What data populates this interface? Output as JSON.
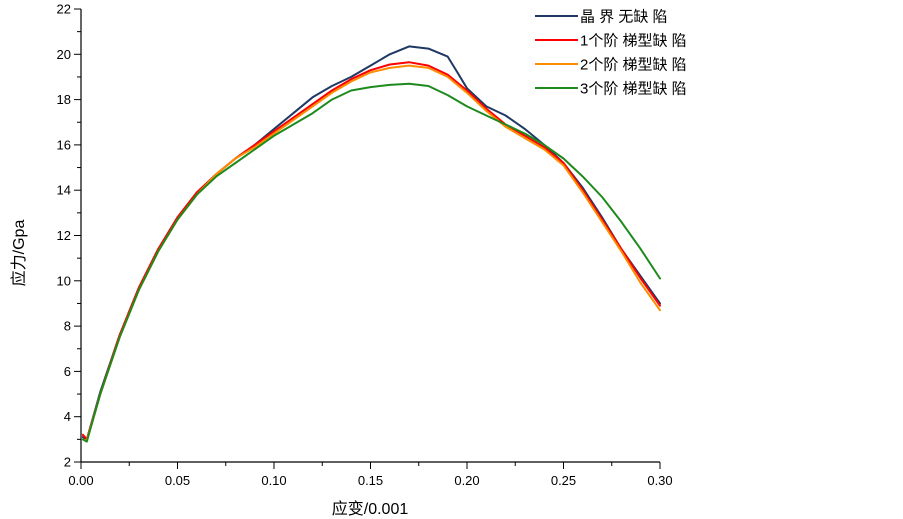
{
  "chart_data": {
    "type": "line",
    "xlabel": "应变/0.001",
    "ylabel": "应力/Gpa",
    "xlim": [
      0.0,
      0.3
    ],
    "ylim": [
      2,
      22
    ],
    "x_ticks": [
      "0.00",
      "0.05",
      "0.10",
      "0.15",
      "0.20",
      "0.25",
      "0.30"
    ],
    "y_ticks": [
      "2",
      "4",
      "6",
      "8",
      "10",
      "12",
      "14",
      "16",
      "18",
      "20",
      "22"
    ],
    "legend_position": "top-right",
    "grid": false,
    "series": [
      {
        "name": "晶 界 无缺 陷",
        "color": "#1f3864",
        "x": [
          0.001,
          0.003,
          0.01,
          0.02,
          0.03,
          0.04,
          0.05,
          0.06,
          0.07,
          0.08,
          0.09,
          0.1,
          0.11,
          0.12,
          0.13,
          0.14,
          0.15,
          0.16,
          0.17,
          0.18,
          0.19,
          0.195,
          0.2,
          0.21,
          0.22,
          0.23,
          0.24,
          0.25,
          0.26,
          0.27,
          0.28,
          0.29,
          0.3
        ],
        "y": [
          3.1,
          3.0,
          5.1,
          7.6,
          9.7,
          11.4,
          12.8,
          13.9,
          14.7,
          15.4,
          16.0,
          16.7,
          17.4,
          18.1,
          18.6,
          19.0,
          19.5,
          20.0,
          20.35,
          20.25,
          19.9,
          19.2,
          18.5,
          17.7,
          17.3,
          16.7,
          16.0,
          15.2,
          14.1,
          12.8,
          11.4,
          10.2,
          9.0
        ]
      },
      {
        "name": "1个阶 梯型缺 陷",
        "color": "#ff0000",
        "x": [
          0.001,
          0.003,
          0.01,
          0.02,
          0.03,
          0.04,
          0.05,
          0.06,
          0.07,
          0.08,
          0.09,
          0.1,
          0.11,
          0.12,
          0.13,
          0.14,
          0.15,
          0.16,
          0.17,
          0.18,
          0.19,
          0.2,
          0.21,
          0.22,
          0.23,
          0.24,
          0.25,
          0.26,
          0.27,
          0.28,
          0.29,
          0.3
        ],
        "y": [
          3.2,
          3.0,
          5.0,
          7.6,
          9.7,
          11.4,
          12.8,
          13.9,
          14.7,
          15.4,
          16.0,
          16.6,
          17.2,
          17.8,
          18.4,
          18.9,
          19.3,
          19.55,
          19.65,
          19.5,
          19.1,
          18.4,
          17.6,
          16.9,
          16.4,
          15.9,
          15.2,
          14.0,
          12.7,
          11.4,
          10.1,
          8.9
        ]
      },
      {
        "name": "2个阶 梯型缺 陷",
        "color": "#ff8c00",
        "x": [
          0.001,
          0.003,
          0.01,
          0.02,
          0.03,
          0.04,
          0.05,
          0.06,
          0.07,
          0.08,
          0.09,
          0.1,
          0.11,
          0.12,
          0.13,
          0.14,
          0.15,
          0.16,
          0.17,
          0.18,
          0.19,
          0.2,
          0.21,
          0.22,
          0.23,
          0.24,
          0.25,
          0.26,
          0.27,
          0.28,
          0.29,
          0.3
        ],
        "y": [
          3.0,
          2.95,
          5.0,
          7.5,
          9.6,
          11.3,
          12.7,
          13.8,
          14.7,
          15.4,
          15.9,
          16.5,
          17.1,
          17.7,
          18.3,
          18.8,
          19.2,
          19.4,
          19.5,
          19.4,
          19.0,
          18.3,
          17.5,
          16.8,
          16.3,
          15.8,
          15.1,
          13.9,
          12.6,
          11.3,
          9.9,
          8.7
        ]
      },
      {
        "name": "3个阶 梯型缺 陷",
        "color": "#1e8a1e",
        "x": [
          0.001,
          0.003,
          0.01,
          0.02,
          0.03,
          0.04,
          0.05,
          0.06,
          0.07,
          0.08,
          0.09,
          0.1,
          0.11,
          0.12,
          0.13,
          0.14,
          0.15,
          0.16,
          0.17,
          0.18,
          0.19,
          0.2,
          0.21,
          0.22,
          0.23,
          0.24,
          0.25,
          0.26,
          0.27,
          0.28,
          0.29,
          0.3
        ],
        "y": [
          3.0,
          2.9,
          5.0,
          7.5,
          9.6,
          11.3,
          12.7,
          13.8,
          14.6,
          15.2,
          15.8,
          16.4,
          16.9,
          17.4,
          18.0,
          18.4,
          18.55,
          18.65,
          18.7,
          18.6,
          18.2,
          17.7,
          17.3,
          16.9,
          16.5,
          16.0,
          15.4,
          14.6,
          13.7,
          12.6,
          11.4,
          10.1
        ]
      }
    ]
  }
}
